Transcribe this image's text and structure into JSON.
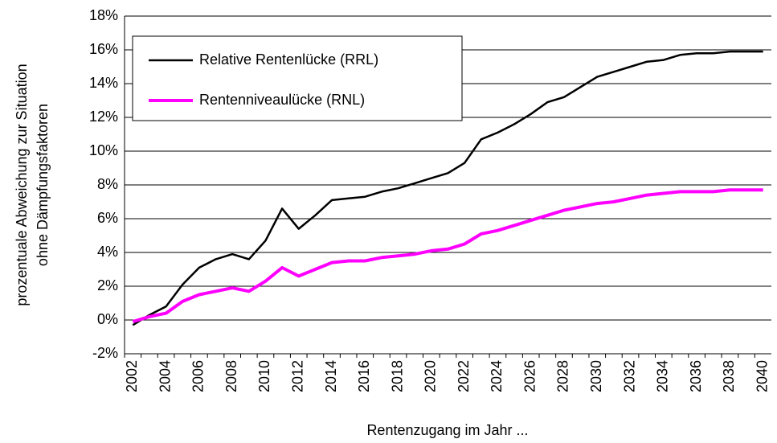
{
  "chart_data": {
    "type": "line",
    "y_label": [
      "prozentuale Abweichung zur Situation",
      "ohne Dämpfungsfaktoren"
    ],
    "x_label": "Rentenzugang im Jahr ...",
    "categories": [
      "2002",
      null,
      "2004",
      null,
      "2006",
      null,
      "2008",
      null,
      "2010",
      null,
      "2012",
      null,
      "2014",
      null,
      "2016",
      null,
      "2018",
      null,
      "2020",
      null,
      "2022",
      null,
      "2024",
      null,
      "2026",
      null,
      "2028",
      null,
      "2030",
      null,
      "2032",
      null,
      "2034",
      null,
      "2036",
      null,
      "2038",
      null,
      "2040"
    ],
    "series": [
      {
        "name": "Relative Rentenlücke (RRL)",
        "color": "#000000",
        "values": [
          -0.3,
          0.3,
          0.8,
          2.1,
          3.1,
          3.6,
          3.9,
          3.6,
          4.7,
          6.6,
          5.4,
          6.2,
          7.1,
          7.2,
          7.3,
          7.6,
          7.8,
          8.1,
          8.4,
          8.7,
          9.3,
          10.7,
          11.1,
          11.6,
          12.2,
          12.9,
          13.2,
          13.8,
          14.4,
          14.7,
          15.0,
          15.3,
          15.4,
          15.7,
          15.8,
          15.8,
          15.9,
          15.9,
          15.9
        ]
      },
      {
        "name": "Rentenniveaulücke (RNL)",
        "color": "#ff00ff",
        "values": [
          -0.1,
          0.2,
          0.4,
          1.1,
          1.5,
          1.7,
          1.9,
          1.7,
          2.3,
          3.1,
          2.6,
          3.0,
          3.4,
          3.5,
          3.5,
          3.7,
          3.8,
          3.9,
          4.1,
          4.2,
          4.5,
          5.1,
          5.3,
          5.6,
          5.9,
          6.2,
          6.5,
          6.7,
          6.9,
          7.0,
          7.2,
          7.4,
          7.5,
          7.6,
          7.6,
          7.6,
          7.7,
          7.7,
          7.7
        ]
      }
    ],
    "ylim": [
      -2,
      18
    ],
    "yticks": [
      {
        "value": -2,
        "label": "-2%"
      },
      {
        "value": 0,
        "label": "0%"
      },
      {
        "value": 2,
        "label": "2%"
      },
      {
        "value": 4,
        "label": "4%"
      },
      {
        "value": 6,
        "label": "6%"
      },
      {
        "value": 8,
        "label": "8%"
      },
      {
        "value": 10,
        "label": "10%"
      },
      {
        "value": 12,
        "label": "12%"
      },
      {
        "value": 14,
        "label": "14%"
      },
      {
        "value": 16,
        "label": "16%"
      },
      {
        "value": 18,
        "label": "18%"
      }
    ],
    "grid": true
  }
}
